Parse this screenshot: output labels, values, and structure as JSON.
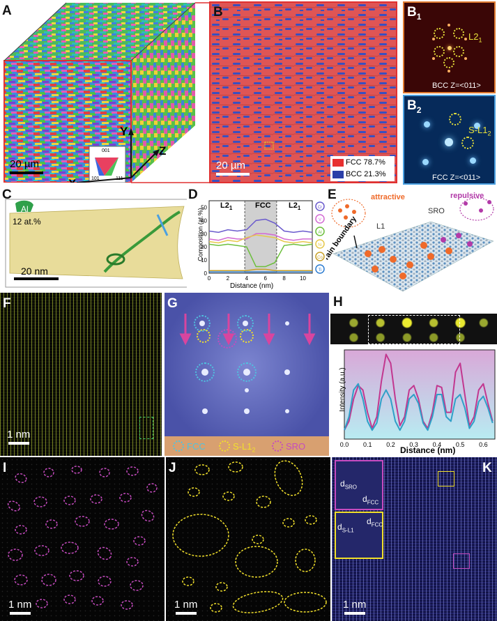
{
  "panels": {
    "A": {
      "label": "A",
      "scale": "20 µm",
      "axes": {
        "x": "X",
        "y": "Y",
        "z": "Z"
      },
      "ipf": [
        "001",
        "101",
        "111"
      ]
    },
    "B": {
      "label": "B",
      "scale": "20 µm",
      "legend": [
        {
          "name": "FCC 78.7%",
          "color": "#e83030"
        },
        {
          "name": "BCC 21.3%",
          "color": "#2b3fa8"
        }
      ]
    },
    "B1": {
      "label": "B",
      "sub": "1",
      "spot": "L2",
      "spot_sub": "1",
      "zone": "BCC Z=<011>"
    },
    "B2": {
      "label": "B",
      "sub": "2",
      "spot": "S-L1",
      "spot_sub": "2",
      "zone": "FCC Z=<011>"
    },
    "C": {
      "label": "C",
      "element": "Al",
      "conc": "12 at.%",
      "scale": "20 nm"
    },
    "D": {
      "label": "D",
      "regions": [
        "L2",
        "FCC",
        "L2"
      ],
      "region_subs": [
        "1",
        "",
        "1"
      ],
      "xlabel": "Distance (nm)",
      "ylabel": "Composition (at.%)",
      "xticks": [
        "0",
        "2",
        "4",
        "6",
        "8",
        "10"
      ],
      "yticks": [
        "0",
        "10",
        "20",
        "30",
        "40",
        "50"
      ],
      "elements": [
        "Cr",
        "V",
        "Al",
        "Ni",
        "Co",
        "Ti"
      ]
    },
    "E": {
      "label": "E",
      "attractive": "attractive",
      "repulsive": "repulsive",
      "sro": "SRO",
      "l1": "L1",
      "gb": "Grain boundary"
    },
    "F": {
      "label": "F",
      "scale": "1 nm"
    },
    "G": {
      "label": "G",
      "legend": [
        "FCC",
        "S-L1",
        "SRO"
      ],
      "legend_subs": [
        "",
        "2",
        ""
      ],
      "colors": {
        "fcc": "#4fc3e0",
        "sl12": "#f2e02b",
        "sro": "#c54bbf"
      }
    },
    "H": {
      "label": "H",
      "xlabel": "Distance (nm)",
      "ylabel": "Intensity (a.u.)",
      "xticks": [
        "0.0",
        "0.1",
        "0.2",
        "0.3",
        "0.4",
        "0.5",
        "0.6"
      ]
    },
    "I": {
      "label": "I",
      "scale": "1 nm"
    },
    "J": {
      "label": "J",
      "scale": "1 nm"
    },
    "K": {
      "label": "K",
      "scale": "1 nm",
      "d_sro": "d",
      "d_sro_sub": "SRO",
      "d_fcc": "d",
      "d_fcc_sub": "FCC",
      "d_sl12": "d",
      "d_sl12_sub": "S-L1",
      "d_fcc2": "d",
      "d_fcc2_sub": "FCC"
    }
  },
  "chart_data": [
    {
      "type": "line",
      "panel": "D",
      "xlabel": "Distance (nm)",
      "ylabel": "Composition (at.%)",
      "xlim": [
        0,
        11
      ],
      "ylim": [
        0,
        55
      ],
      "x": [
        0,
        1,
        2,
        3,
        4,
        5,
        6,
        7,
        8,
        9,
        10,
        11
      ],
      "series": [
        {
          "name": "Cr",
          "color": "#6a5acd",
          "values": [
            32,
            31,
            33,
            32,
            33,
            40,
            41,
            38,
            32,
            31,
            32,
            31
          ]
        },
        {
          "name": "V",
          "color": "#d36ad3",
          "values": [
            26,
            25,
            27,
            26,
            26,
            30,
            30,
            29,
            26,
            25,
            26,
            26
          ]
        },
        {
          "name": "Al",
          "color": "#6cbf3c",
          "values": [
            22,
            21,
            22,
            21,
            20,
            5,
            5,
            8,
            21,
            22,
            21,
            22
          ]
        },
        {
          "name": "Ni",
          "color": "#e6c84a",
          "values": [
            24,
            23,
            25,
            24,
            27,
            29,
            28,
            27,
            24,
            23,
            24,
            23
          ]
        },
        {
          "name": "Co",
          "color": "#c8a028",
          "values": [
            2,
            2,
            2,
            2,
            2,
            3,
            3,
            2,
            2,
            2,
            2,
            2
          ]
        },
        {
          "name": "Ti",
          "color": "#2b7bd0",
          "values": [
            1,
            1,
            1,
            1,
            1,
            1,
            1,
            1,
            1,
            1,
            1,
            1
          ]
        }
      ]
    },
    {
      "type": "line",
      "panel": "H",
      "xlabel": "Distance (nm)",
      "ylabel": "Intensity (a.u.)",
      "xlim": [
        0,
        0.65
      ],
      "ylim": [
        0,
        1
      ],
      "x": [
        0.0,
        0.02,
        0.04,
        0.06,
        0.08,
        0.1,
        0.12,
        0.14,
        0.16,
        0.18,
        0.2,
        0.22,
        0.24,
        0.26,
        0.28,
        0.3,
        0.32,
        0.34,
        0.36,
        0.38,
        0.4,
        0.42,
        0.44,
        0.46,
        0.48,
        0.5,
        0.52,
        0.54,
        0.56,
        0.58,
        0.6,
        0.62,
        0.64
      ],
      "series": [
        {
          "name": "",
          "color": "#c2378f",
          "values": [
            0.1,
            0.2,
            0.45,
            0.6,
            0.55,
            0.3,
            0.12,
            0.25,
            0.65,
            0.95,
            0.85,
            0.45,
            0.15,
            0.25,
            0.55,
            0.6,
            0.45,
            0.2,
            0.12,
            0.3,
            0.6,
            0.58,
            0.3,
            0.3,
            0.75,
            0.85,
            0.5,
            0.15,
            0.25,
            0.55,
            0.62,
            0.4,
            0.2
          ]
        },
        {
          "name": "",
          "color": "#2fa0c8",
          "values": [
            0.1,
            0.25,
            0.55,
            0.62,
            0.45,
            0.2,
            0.1,
            0.18,
            0.45,
            0.55,
            0.45,
            0.2,
            0.1,
            0.2,
            0.45,
            0.5,
            0.4,
            0.18,
            0.1,
            0.25,
            0.5,
            0.5,
            0.25,
            0.2,
            0.45,
            0.5,
            0.35,
            0.12,
            0.2,
            0.42,
            0.48,
            0.35,
            0.18
          ]
        }
      ]
    }
  ]
}
